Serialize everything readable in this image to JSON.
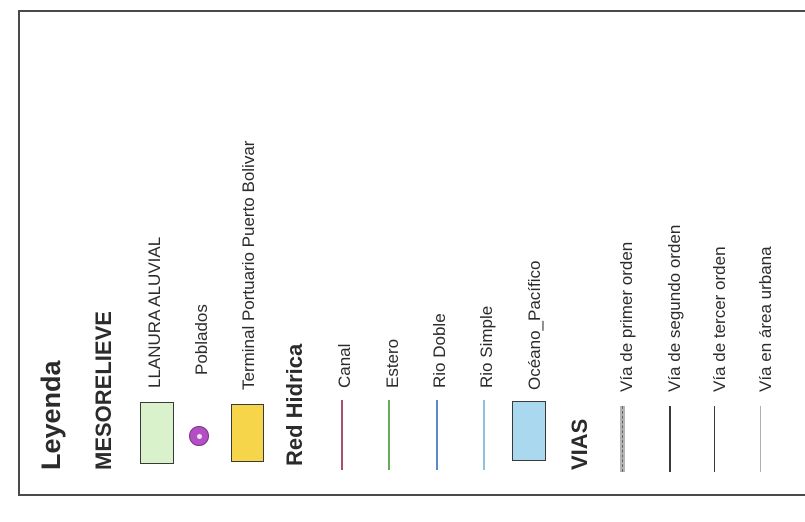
{
  "legend": {
    "title": "Leyenda",
    "mesorelieve": {
      "heading": "MESORELIEVE",
      "items": [
        {
          "label": "LLANURA ALUVIAL",
          "color": "#d9f2cc"
        },
        {
          "label": "Poblados",
          "color": "#b24fc4"
        },
        {
          "label": "Terminal Portuario Puerto Bolivar",
          "color": "#f6d54a"
        }
      ]
    },
    "red_hidrica": {
      "heading": "Red Hidrica",
      "items": [
        {
          "label": "Canal",
          "color": "#a8506a"
        },
        {
          "label": "Estero",
          "color": "#6aa85a"
        },
        {
          "label": "Rio Doble",
          "color": "#5f88c8"
        },
        {
          "label": "Rio Simple",
          "color": "#8ec3de"
        },
        {
          "label": "Océano_Pacífico",
          "color": "#a9d8ef"
        }
      ]
    },
    "vias": {
      "heading": "VIAS",
      "items": [
        {
          "label": "Vía de primer orden",
          "color": "#9a9a9a"
        },
        {
          "label": "Vía de segundo orden",
          "color": "#3a3a3a"
        },
        {
          "label": "Vía de tercer orden",
          "color": "#3a3a3a"
        },
        {
          "label": "Vía en área urbana",
          "color": "#a0a0a0"
        }
      ]
    }
  }
}
